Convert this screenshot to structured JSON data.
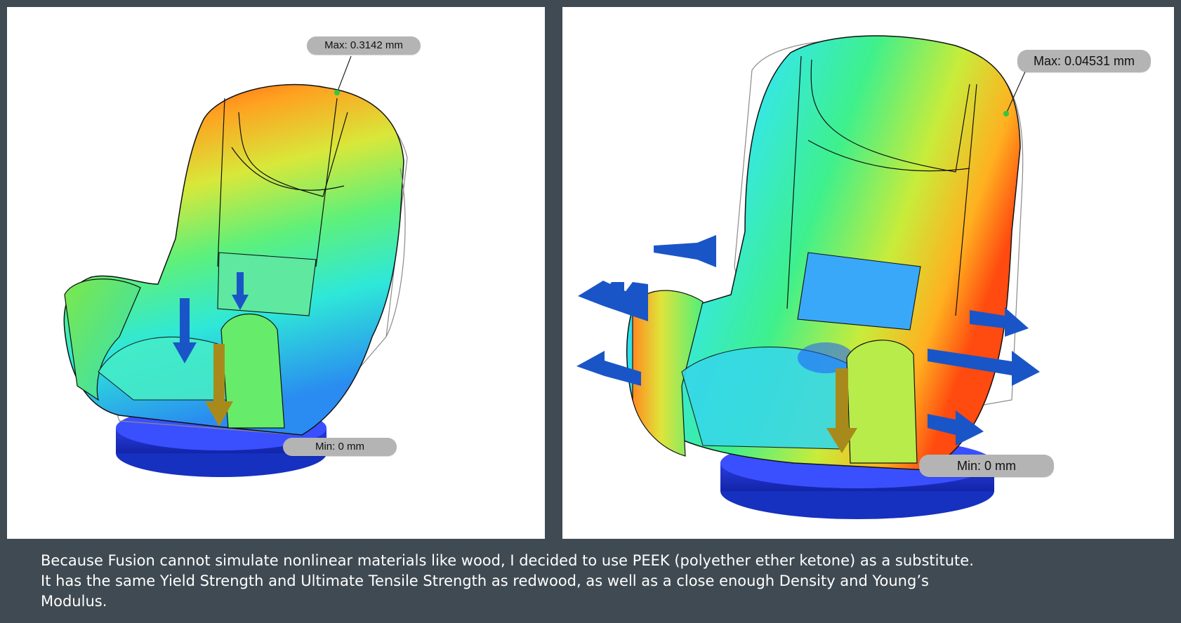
{
  "caption": {
    "line1": "Because Fusion cannot simulate nonlinear materials like wood, I decided to use PEEK (polyether ether ketone) as a substitute.",
    "line2": "It has the same Yield Strength and Ultimate Tensile Strength as redwood, as well as a close enough Density and Young’s",
    "line3": "Modulus."
  },
  "left_view": {
    "max_probe": {
      "label": "Max:",
      "value": "0.3142 mm"
    },
    "min_probe": {
      "label": "Min:",
      "value": "0 mm"
    }
  },
  "right_view": {
    "max_probe": {
      "label": "Max:",
      "value": "0.04531 mm"
    },
    "min_probe": {
      "label": "Min:",
      "value": "0 mm"
    }
  },
  "colors": {
    "background": "#3f4a52",
    "panel": "#ffffff",
    "probe_badge": "#b4b4b4",
    "load_arrow": "#1a55c8",
    "gravity_arrow": "#a88a1c",
    "base": "#2030d0",
    "heatmap_low": "#1f5bff",
    "heatmap_mid": "#3cf07a",
    "heatmap_high": "#ff3a10"
  },
  "icons": [
    "force-arrow-icon",
    "gravity-arrow-icon",
    "probe-pin-icon",
    "fixed-constraint-icon"
  ]
}
